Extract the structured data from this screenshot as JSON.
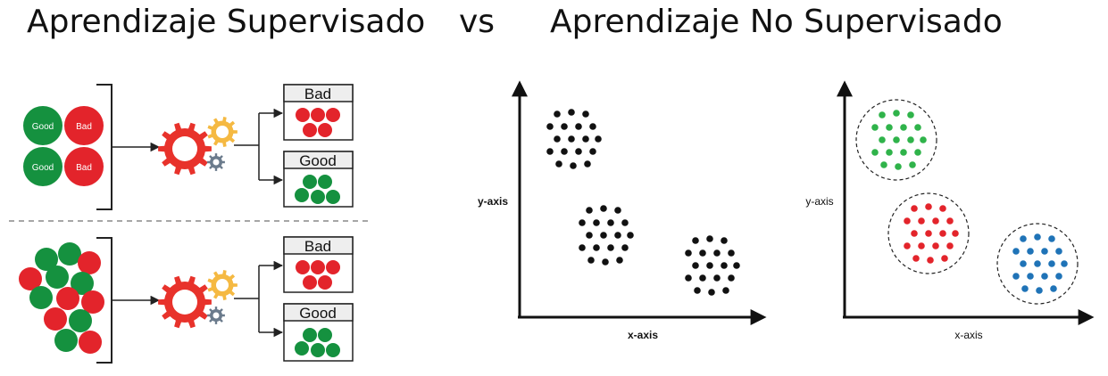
{
  "header": {
    "left_title": "Aprendizaje Supervisado",
    "vs": "vs",
    "right_title": "Aprendizaje No Supervisado"
  },
  "supervised": {
    "input_labels": [
      "Good",
      "Bad",
      "Good",
      "Bad"
    ],
    "output_bad": "Bad",
    "output_good": "Good"
  },
  "unsupervised": {
    "plot1": {
      "xlabel": "x-axis",
      "ylabel": "y-axis"
    },
    "plot2": {
      "xlabel": "x-axis",
      "ylabel": "y-axis"
    }
  },
  "colors": {
    "green": "#15913f",
    "red": "#e3242b",
    "gear_red": "#e8322b",
    "gear_orange": "#f5b942",
    "gear_gray": "#6b7b8c",
    "cluster_green": "#2fb34a",
    "cluster_red": "#e3242b",
    "cluster_blue": "#1f73b7"
  }
}
